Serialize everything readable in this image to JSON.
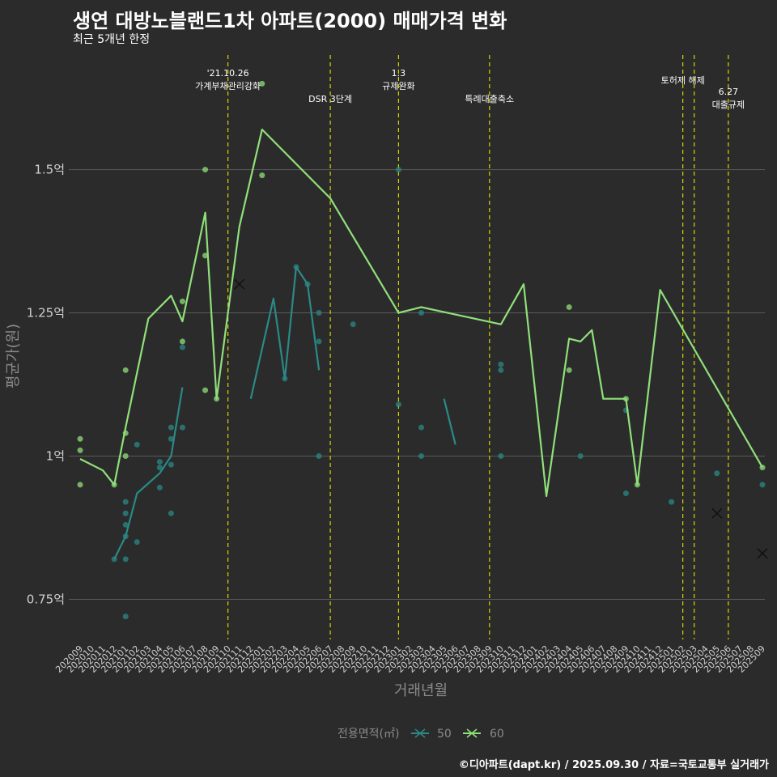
{
  "header": {
    "title": "생연 대방노블랜드1차 아파트(2000) 매매가격 변화",
    "subtitle": "최근 5개년 한정",
    "caption": "©디아파트(dapt.kr) / 2025.09.30 / 자료=국토교통부 실거래가"
  },
  "colors": {
    "s50": "#2a8a87",
    "s60": "#90e07a",
    "event": "#d4d400",
    "grid": "#5a5a5a",
    "bg": "#2b2b2b"
  },
  "chart_data": {
    "type": "line",
    "title": "생연 대방노블랜드1차 아파트(2000) 매매가격 변화",
    "subtitle": "최근 5개년 한정",
    "xlabel": "거래년월",
    "ylabel": "평균가(원)",
    "ylim": [
      0.68,
      1.7
    ],
    "yticks": [
      0.75,
      1.0,
      1.25,
      1.5
    ],
    "ytick_labels": [
      "0.75억",
      "1억",
      "1.25억",
      "1.5억"
    ],
    "categories": [
      "202009",
      "202010",
      "202011",
      "202012",
      "202101",
      "202102",
      "202103",
      "202104",
      "202105",
      "202106",
      "202107",
      "202108",
      "202109",
      "202110",
      "202111",
      "202112",
      "202201",
      "202202",
      "202203",
      "202204",
      "202205",
      "202206",
      "202207",
      "202208",
      "202209",
      "202210",
      "202211",
      "202212",
      "202301",
      "202302",
      "202303",
      "202304",
      "202305",
      "202306",
      "202307",
      "202308",
      "202309",
      "202310",
      "202311",
      "202312",
      "202401",
      "202402",
      "202403",
      "202404",
      "202405",
      "202406",
      "202407",
      "202408",
      "202409",
      "202410",
      "202411",
      "202412",
      "202501",
      "202502",
      "202503",
      "202504",
      "202505",
      "202506",
      "202507",
      "202508",
      "202509"
    ],
    "legend": {
      "title": "전용면적(㎡)",
      "items": [
        "50",
        "60"
      ]
    },
    "events": [
      {
        "x": "202110",
        "label": "'21.10.26\n가계부채관리강화",
        "row": 0
      },
      {
        "x": "202207",
        "label": "DSR 3단계",
        "row": 1
      },
      {
        "x": "202301",
        "label": "1.3\n규제완화",
        "row": 0
      },
      {
        "x": "202309",
        "label": "특례대출축소",
        "row": 1
      },
      {
        "x": "202502",
        "label": "토허제 해제",
        "row": 0
      },
      {
        "x": "202503",
        "label": "",
        "row": 0
      },
      {
        "x": "202506",
        "label": "6.27\n대출규제",
        "row": 1
      }
    ],
    "series": [
      {
        "name": "50",
        "line_segments": [
          [
            [
              "202012",
              0.82
            ],
            [
              "202101",
              0.86
            ],
            [
              "202102",
              0.935
            ],
            [
              "202104",
              0.97
            ],
            [
              "202105",
              1.0
            ],
            [
              "202106",
              1.12
            ]
          ],
          [
            [
              "202112",
              1.1
            ],
            [
              "202202",
              1.275
            ],
            [
              "202203",
              1.135
            ],
            [
              "202204",
              1.33
            ],
            [
              "202205",
              1.3
            ],
            [
              "202206",
              1.15
            ]
          ],
          [
            [
              "202305",
              1.1
            ],
            [
              "202306",
              1.02
            ]
          ]
        ],
        "points": [
          [
            "202012",
            0.82
          ],
          [
            "202101",
            0.92
          ],
          [
            "202101",
            0.9
          ],
          [
            "202101",
            0.88
          ],
          [
            "202101",
            0.86
          ],
          [
            "202101",
            0.82
          ],
          [
            "202101",
            0.72
          ],
          [
            "202102",
            1.02
          ],
          [
            "202102",
            0.85
          ],
          [
            "202104",
            0.99
          ],
          [
            "202104",
            0.98
          ],
          [
            "202104",
            0.945
          ],
          [
            "202105",
            1.05
          ],
          [
            "202105",
            1.03
          ],
          [
            "202105",
            0.985
          ],
          [
            "202105",
            0.9
          ],
          [
            "202106",
            1.05
          ],
          [
            "202106",
            1.19
          ],
          [
            "202203",
            1.135
          ],
          [
            "202204",
            1.33
          ],
          [
            "202205",
            1.3
          ],
          [
            "202206",
            1.25
          ],
          [
            "202206",
            1.2
          ],
          [
            "202206",
            1.0
          ],
          [
            "202209",
            1.23
          ],
          [
            "202301",
            1.5
          ],
          [
            "202301",
            1.09
          ],
          [
            "202303",
            1.25
          ],
          [
            "202303",
            1.05
          ],
          [
            "202303",
            1.0
          ],
          [
            "202310",
            1.16
          ],
          [
            "202310",
            1.15
          ],
          [
            "202310",
            1.0
          ],
          [
            "202405",
            1.0
          ],
          [
            "202409",
            1.08
          ],
          [
            "202409",
            0.935
          ],
          [
            "202501",
            0.92
          ],
          [
            "202505",
            0.97
          ],
          [
            "202509",
            0.95
          ]
        ],
        "cross_markers": [
          [
            "202111",
            1.3
          ],
          [
            "202509",
            0.83
          ]
        ]
      },
      {
        "name": "60",
        "line_segments": [
          [
            [
              "202009",
              0.995
            ],
            [
              "202011",
              0.975
            ],
            [
              "202012",
              0.95
            ],
            [
              "202101",
              1.05
            ],
            [
              "202103",
              1.24
            ],
            [
              "202105",
              1.28
            ],
            [
              "202106",
              1.235
            ],
            [
              "202108",
              1.425
            ],
            [
              "202109",
              1.1
            ],
            [
              "202111",
              1.4
            ],
            [
              "202201",
              1.57
            ],
            [
              "202207",
              1.45
            ],
            [
              "202301",
              1.25
            ],
            [
              "202303",
              1.26
            ],
            [
              "202310",
              1.23
            ],
            [
              "202312",
              1.3
            ],
            [
              "202402",
              0.93
            ],
            [
              "202404",
              1.205
            ],
            [
              "202405",
              1.2
            ],
            [
              "202406",
              1.22
            ],
            [
              "202407",
              1.1
            ],
            [
              "202409",
              1.1
            ],
            [
              "202410",
              0.95
            ],
            [
              "202412",
              1.29
            ],
            [
              "202509",
              0.98
            ]
          ]
        ],
        "points": [
          [
            "202009",
            1.03
          ],
          [
            "202009",
            1.01
          ],
          [
            "202009",
            0.95
          ],
          [
            "202012",
            0.95
          ],
          [
            "202101",
            1.15
          ],
          [
            "202101",
            1.04
          ],
          [
            "202101",
            1.0
          ],
          [
            "202106",
            1.27
          ],
          [
            "202106",
            1.2
          ],
          [
            "202108",
            1.5
          ],
          [
            "202108",
            1.35
          ],
          [
            "202108",
            1.115
          ],
          [
            "202109",
            1.1
          ],
          [
            "202201",
            1.65
          ],
          [
            "202201",
            1.49
          ],
          [
            "202404",
            1.26
          ],
          [
            "202404",
            1.15
          ],
          [
            "202409",
            1.1
          ],
          [
            "202410",
            0.95
          ],
          [
            "202509",
            0.98
          ]
        ],
        "cross_markers": [
          [
            "202505",
            0.9
          ]
        ]
      }
    ]
  }
}
